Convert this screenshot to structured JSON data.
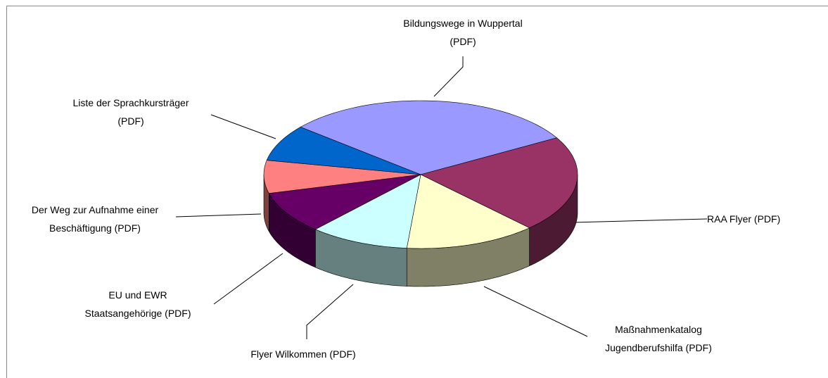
{
  "chart_data": {
    "type": "pie3d",
    "categories": [
      "Bildungswege in Wuppertal (PDF)",
      "RAA Flyer (PDF)",
      "Maßnahmenkatalog Jugendberufshilfa (PDF)",
      "Flyer Wilkommen (PDF)",
      "EU und EWR Staatsangehörige (PDF)",
      "Der Weg zur Aufnahme einer Beschäftigung (PDF)",
      "Liste der Sprachkursträger (PDF)"
    ],
    "values": [
      30.6,
      21.1,
      13.6,
      10.3,
      9.2,
      7.2,
      8.0
    ],
    "colors": [
      "#9999ff",
      "#993366",
      "#ffffcc",
      "#ccffff",
      "#660066",
      "#ff8080",
      "#0066cc"
    ]
  }
}
